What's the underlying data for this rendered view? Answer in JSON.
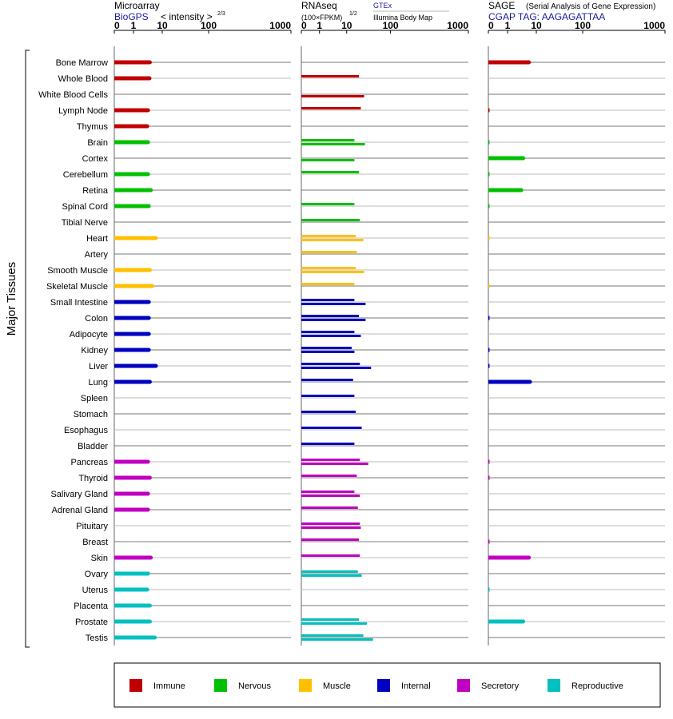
{
  "chart_data": {
    "type": "bar",
    "y_axis_title": "Major Tissues",
    "x_ticks": [
      "0",
      "1",
      "10",
      "100",
      "1000"
    ],
    "panels": [
      {
        "id": "microarray",
        "title": "Microarray",
        "subtitle": "BioGPS",
        "note": "< intensity >",
        "note_power": "2/3",
        "xlim": [
          0,
          1000
        ],
        "scale": "log",
        "series": [
          {
            "name": "BioGPS",
            "values": [
              3.7,
              3.6,
              null,
              3.2,
              3.0,
              3.2,
              null,
              3.2,
              4.0,
              3.4,
              null,
              6.0,
              null,
              3.7,
              4.5,
              3.4,
              3.4,
              3.4,
              3.4,
              6.0,
              3.7,
              null,
              null,
              null,
              null,
              3.2,
              3.7,
              3.2,
              3.2,
              null,
              null,
              4.0,
              3.2,
              3.0,
              3.7,
              3.7,
              5.5
            ]
          }
        ]
      },
      {
        "id": "rnaseq",
        "title": "RNAseq",
        "note": "(100×FPKM)",
        "note_power": "1/2",
        "legend_top": "GTEx",
        "legend_bottom": "Illumina Body Map",
        "xlim": [
          0,
          1000
        ],
        "scale": "log",
        "series": [
          {
            "name": "GTEx",
            "values": [
              null,
              19,
              null,
              21,
              null,
              15,
              null,
              19,
              null,
              15,
              20,
              16,
              17,
              16,
              15,
              15,
              19,
              15,
              13,
              20,
              14,
              15,
              16,
              22,
              15,
              20,
              17,
              15,
              18,
              20,
              19,
              20,
              18,
              null,
              null,
              19,
              24
            ]
          },
          {
            "name": "Illumina Body Map",
            "values": [
              null,
              null,
              25,
              null,
              null,
              26,
              15,
              null,
              null,
              null,
              null,
              24,
              null,
              25,
              null,
              27,
              27,
              21,
              15,
              36,
              null,
              null,
              null,
              null,
              null,
              31,
              null,
              20,
              null,
              21,
              null,
              null,
              22,
              null,
              null,
              29,
              40
            ]
          }
        ]
      },
      {
        "id": "sage",
        "title": "SAGE",
        "note": "(Serial Analysis of Gene Expression)",
        "subtitle": "CGAP  TAG: AAGAGATTAA",
        "xlim": [
          0,
          1000
        ],
        "scale": "log",
        "series": [
          {
            "name": "SAGE",
            "values": [
              5.5,
              null,
              null,
              0.05,
              null,
              0.05,
              3.5,
              0.05,
              3.0,
              0.05,
              null,
              0.02,
              null,
              null,
              0.02,
              null,
              0.05,
              null,
              0.05,
              0.05,
              6.0,
              null,
              null,
              null,
              null,
              0.05,
              0.05,
              null,
              null,
              null,
              0.05,
              5.5,
              null,
              0.05,
              null,
              3.5,
              null
            ]
          }
        ]
      }
    ],
    "tissues": [
      {
        "label": "Bone Marrow",
        "group": "immune"
      },
      {
        "label": "Whole Blood",
        "group": "immune"
      },
      {
        "label": "White Blood Cells",
        "group": "immune"
      },
      {
        "label": "Lymph Node",
        "group": "immune"
      },
      {
        "label": "Thymus",
        "group": "immune"
      },
      {
        "label": "Brain",
        "group": "nervous"
      },
      {
        "label": "Cortex",
        "group": "nervous"
      },
      {
        "label": "Cerebellum",
        "group": "nervous"
      },
      {
        "label": "Retina",
        "group": "nervous"
      },
      {
        "label": "Spinal Cord",
        "group": "nervous"
      },
      {
        "label": "Tibial Nerve",
        "group": "nervous"
      },
      {
        "label": "Heart",
        "group": "muscle"
      },
      {
        "label": "Artery",
        "group": "muscle"
      },
      {
        "label": "Smooth Muscle",
        "group": "muscle"
      },
      {
        "label": "Skeletal Muscle",
        "group": "muscle"
      },
      {
        "label": "Small Intestine",
        "group": "internal"
      },
      {
        "label": "Colon",
        "group": "internal"
      },
      {
        "label": "Adipocyte",
        "group": "internal"
      },
      {
        "label": "Kidney",
        "group": "internal"
      },
      {
        "label": "Liver",
        "group": "internal"
      },
      {
        "label": "Lung",
        "group": "internal"
      },
      {
        "label": "Spleen",
        "group": "internal"
      },
      {
        "label": "Stomach",
        "group": "internal"
      },
      {
        "label": "Esophagus",
        "group": "internal"
      },
      {
        "label": "Bladder",
        "group": "internal"
      },
      {
        "label": "Pancreas",
        "group": "secretory"
      },
      {
        "label": "Thyroid",
        "group": "secretory"
      },
      {
        "label": "Salivary Gland",
        "group": "secretory"
      },
      {
        "label": "Adrenal Gland",
        "group": "secretory"
      },
      {
        "label": "Pituitary",
        "group": "secretory"
      },
      {
        "label": "Breast",
        "group": "secretory"
      },
      {
        "label": "Skin",
        "group": "secretory"
      },
      {
        "label": "Ovary",
        "group": "reproductive"
      },
      {
        "label": "Uterus",
        "group": "reproductive"
      },
      {
        "label": "Placenta",
        "group": "reproductive"
      },
      {
        "label": "Prostate",
        "group": "reproductive"
      },
      {
        "label": "Testis",
        "group": "reproductive"
      }
    ],
    "legend": [
      {
        "key": "immune",
        "label": "Immune",
        "color": "#c00000"
      },
      {
        "key": "nervous",
        "label": "Nervous",
        "color": "#00c000"
      },
      {
        "key": "muscle",
        "label": "Muscle",
        "color": "#ffc000"
      },
      {
        "key": "internal",
        "label": "Internal",
        "color": "#0000c0"
      },
      {
        "key": "secretory",
        "label": "Secretory",
        "color": "#c000c0"
      },
      {
        "key": "reproductive",
        "label": "Reproductive",
        "color": "#00c0c0"
      }
    ],
    "legend_placement": "bottom",
    "grid": true
  }
}
